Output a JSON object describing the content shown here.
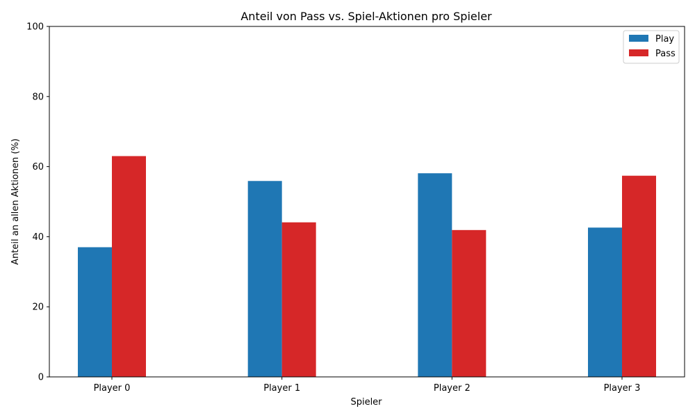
{
  "chart_data": {
    "type": "bar",
    "title": "Anteil von Pass vs. Spiel-Aktionen pro Spieler",
    "xlabel": "Spieler",
    "ylabel": "Anteil an allen Aktionen (%)",
    "categories": [
      "Player 0",
      "Player 1",
      "Player 2",
      "Player 3"
    ],
    "series": [
      {
        "name": "Play",
        "color": "#1f77b4",
        "values": [
          37.0,
          55.9,
          58.1,
          42.6
        ]
      },
      {
        "name": "Pass",
        "color": "#d62728",
        "values": [
          63.0,
          44.1,
          41.9,
          57.4
        ]
      }
    ],
    "ylim": [
      0,
      100
    ],
    "yticks": [
      0,
      20,
      40,
      60,
      80,
      100
    ],
    "grid": false,
    "legend_position": "top-right"
  }
}
